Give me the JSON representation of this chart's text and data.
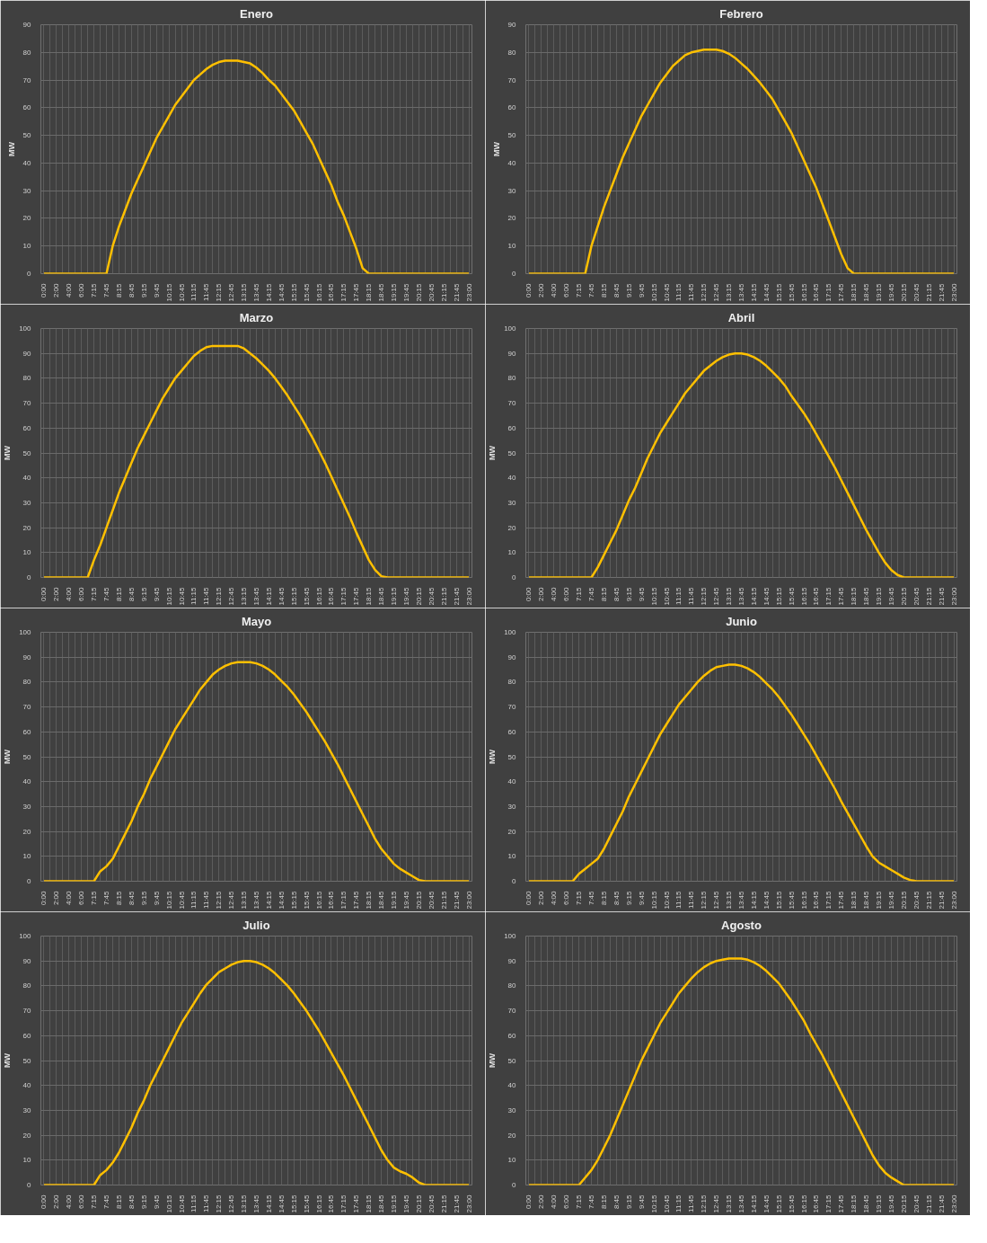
{
  "chart_data": [
    {
      "type": "line",
      "title": "Enero",
      "ylabel": "MW",
      "color": "#ffc000",
      "grid": true,
      "ylim": [
        0,
        90
      ],
      "yticks": [
        0,
        10,
        20,
        30,
        40,
        50,
        60,
        70,
        80,
        90
      ],
      "categories": [
        "0:00",
        null,
        "2:00",
        null,
        "4:00",
        null,
        "6:00",
        null,
        "7:15",
        null,
        "7:45",
        null,
        "8:15",
        null,
        "8:45",
        null,
        "9:15",
        null,
        "9:45",
        null,
        "10:15",
        null,
        "10:45",
        null,
        "11:15",
        null,
        "11:45",
        null,
        "12:15",
        null,
        "12:45",
        null,
        "13:15",
        null,
        "13:45",
        null,
        "14:15",
        null,
        "14:45",
        null,
        "15:15",
        null,
        "15:45",
        null,
        "16:15",
        null,
        "16:45",
        null,
        "17:15",
        null,
        "17:45",
        null,
        "18:15",
        null,
        "18:45",
        null,
        "19:15",
        null,
        "19:45",
        null,
        "20:15",
        null,
        "20:45",
        null,
        "21:15",
        null,
        "21:45",
        null,
        "23:00"
      ],
      "values": [
        0,
        0,
        0,
        0,
        0,
        0,
        0,
        0,
        0,
        0,
        0,
        10,
        17,
        23,
        29,
        34,
        39,
        44,
        49,
        53,
        57,
        61,
        64,
        67,
        70,
        72,
        74,
        75.5,
        76.5,
        77,
        77,
        77,
        76.5,
        76,
        74.5,
        72.5,
        70,
        68,
        65,
        62,
        59,
        55,
        51,
        47,
        42,
        37,
        32,
        26,
        21,
        15,
        9,
        2,
        0,
        0,
        0,
        0,
        0,
        0,
        0,
        0,
        0,
        0,
        0,
        0,
        0,
        0,
        0,
        0,
        0
      ]
    },
    {
      "type": "line",
      "title": "Febrero",
      "ylabel": "MW",
      "color": "#ffc000",
      "grid": true,
      "ylim": [
        0,
        90
      ],
      "yticks": [
        0,
        10,
        20,
        30,
        40,
        50,
        60,
        70,
        80,
        90
      ],
      "categories": [
        "0:00",
        null,
        "2:00",
        null,
        "4:00",
        null,
        "6:00",
        null,
        "7:15",
        null,
        "7:45",
        null,
        "8:15",
        null,
        "8:45",
        null,
        "9:15",
        null,
        "9:45",
        null,
        "10:15",
        null,
        "10:45",
        null,
        "11:15",
        null,
        "11:45",
        null,
        "12:15",
        null,
        "12:45",
        null,
        "13:15",
        null,
        "13:45",
        null,
        "14:15",
        null,
        "14:45",
        null,
        "15:15",
        null,
        "15:45",
        null,
        "16:15",
        null,
        "16:45",
        null,
        "17:15",
        null,
        "17:45",
        null,
        "18:15",
        null,
        "18:45",
        null,
        "19:15",
        null,
        "19:45",
        null,
        "20:15",
        null,
        "20:45",
        null,
        "21:15",
        null,
        "21:45",
        null,
        "23:00"
      ],
      "values": [
        0,
        0,
        0,
        0,
        0,
        0,
        0,
        0,
        0,
        0,
        10,
        17,
        24,
        30,
        36,
        42,
        47,
        52,
        57,
        61,
        65,
        69,
        72,
        75,
        77,
        79,
        80,
        80.5,
        81,
        81,
        81,
        80.5,
        79.5,
        78,
        76,
        74,
        71.5,
        69,
        66,
        63,
        59,
        55,
        51,
        46,
        41,
        36,
        31,
        25,
        19,
        13,
        7,
        2,
        0,
        0,
        0,
        0,
        0,
        0,
        0,
        0,
        0,
        0,
        0,
        0,
        0,
        0,
        0,
        0,
        0
      ]
    },
    {
      "type": "line",
      "title": "Marzo",
      "ylabel": "MW",
      "color": "#ffc000",
      "grid": true,
      "ylim": [
        0,
        100
      ],
      "yticks": [
        0,
        10,
        20,
        30,
        40,
        50,
        60,
        70,
        80,
        90,
        100
      ],
      "categories": [
        "0:00",
        null,
        "2:00",
        null,
        "4:00",
        null,
        "6:00",
        null,
        "7:15",
        null,
        "7:45",
        null,
        "8:15",
        null,
        "8:45",
        null,
        "9:15",
        null,
        "9:45",
        null,
        "10:15",
        null,
        "10:45",
        null,
        "11:15",
        null,
        "11:45",
        null,
        "12:15",
        null,
        "12:45",
        null,
        "13:15",
        null,
        "13:45",
        null,
        "14:15",
        null,
        "14:45",
        null,
        "15:15",
        null,
        "15:45",
        null,
        "16:15",
        null,
        "16:45",
        null,
        "17:15",
        null,
        "17:45",
        null,
        "18:15",
        null,
        "18:45",
        null,
        "19:15",
        null,
        "19:45",
        null,
        "20:15",
        null,
        "20:45",
        null,
        "21:15",
        null,
        "21:45",
        null,
        "23:00"
      ],
      "values": [
        0,
        0,
        0,
        0,
        0,
        0,
        0,
        0,
        7,
        13,
        20,
        27,
        34,
        40,
        46,
        52,
        57,
        62,
        67,
        72,
        76,
        80,
        83,
        86,
        89,
        91,
        92.5,
        93,
        93,
        93,
        93,
        93,
        92,
        90,
        88,
        85.5,
        83,
        80,
        76.5,
        73,
        69,
        65,
        60.5,
        56,
        51,
        46,
        40.5,
        35,
        29.5,
        24,
        18,
        12.5,
        7,
        3,
        0.5,
        0,
        0,
        0,
        0,
        0,
        0,
        0,
        0,
        0,
        0,
        0,
        0,
        0,
        0
      ]
    },
    {
      "type": "line",
      "title": "Abril",
      "ylabel": "MW",
      "color": "#ffc000",
      "grid": true,
      "ylim": [
        0,
        100
      ],
      "yticks": [
        0,
        10,
        20,
        30,
        40,
        50,
        60,
        70,
        80,
        90,
        100
      ],
      "categories": [
        "0:00",
        null,
        "2:00",
        null,
        "4:00",
        null,
        "6:00",
        null,
        "7:15",
        null,
        "7:45",
        null,
        "8:15",
        null,
        "8:45",
        null,
        "9:15",
        null,
        "9:45",
        null,
        "10:15",
        null,
        "10:45",
        null,
        "11:15",
        null,
        "11:45",
        null,
        "12:15",
        null,
        "12:45",
        null,
        "13:15",
        null,
        "13:45",
        null,
        "14:15",
        null,
        "14:45",
        null,
        "15:15",
        null,
        "15:45",
        null,
        "16:15",
        null,
        "16:45",
        null,
        "17:15",
        null,
        "17:45",
        null,
        "18:15",
        null,
        "18:45",
        null,
        "19:15",
        null,
        "19:45",
        null,
        "20:15",
        null,
        "20:45",
        null,
        "21:15",
        null,
        "21:45",
        null,
        "23:00"
      ],
      "values": [
        0,
        0,
        0,
        0,
        0,
        0,
        0,
        0,
        0,
        0,
        0,
        4,
        9,
        14,
        19,
        25,
        31,
        36,
        42,
        48,
        53,
        58,
        62,
        66,
        70,
        74,
        77,
        80,
        83,
        85,
        87,
        88.5,
        89.5,
        90,
        90,
        89.5,
        88.5,
        87,
        85,
        82.5,
        80,
        77,
        73,
        69.5,
        66,
        62,
        57.5,
        53,
        48.5,
        44,
        39,
        34,
        29,
        24,
        19,
        14.5,
        10,
        6,
        3,
        1,
        0,
        0,
        0,
        0,
        0,
        0,
        0,
        0,
        0
      ]
    },
    {
      "type": "line",
      "title": "Mayo",
      "ylabel": "MW",
      "color": "#ffc000",
      "grid": true,
      "ylim": [
        0,
        100
      ],
      "yticks": [
        0,
        10,
        20,
        30,
        40,
        50,
        60,
        70,
        80,
        90,
        100
      ],
      "categories": [
        "0:00",
        null,
        "2:00",
        null,
        "4:00",
        null,
        "6:00",
        null,
        "7:15",
        null,
        "7:45",
        null,
        "8:15",
        null,
        "8:45",
        null,
        "9:15",
        null,
        "9:45",
        null,
        "10:15",
        null,
        "10:45",
        null,
        "11:15",
        null,
        "11:45",
        null,
        "12:15",
        null,
        "12:45",
        null,
        "13:15",
        null,
        "13:45",
        null,
        "14:15",
        null,
        "14:45",
        null,
        "15:15",
        null,
        "15:45",
        null,
        "16:15",
        null,
        "16:45",
        null,
        "17:15",
        null,
        "17:45",
        null,
        "18:15",
        null,
        "18:45",
        null,
        "19:15",
        null,
        "19:45",
        null,
        "20:15",
        null,
        "20:45",
        null,
        "21:15",
        null,
        "21:45",
        null,
        "23:00"
      ],
      "values": [
        0,
        0,
        0,
        0,
        0,
        0,
        0,
        0,
        0,
        4,
        6,
        9,
        14,
        19,
        24,
        30,
        35,
        41,
        46,
        51,
        56,
        61,
        65,
        69,
        73,
        77,
        80,
        83,
        85,
        86.5,
        87.5,
        88,
        88,
        88,
        87.5,
        86.5,
        85,
        83,
        80.5,
        78,
        75,
        71.5,
        68,
        64,
        60,
        56,
        51.5,
        47,
        42,
        37,
        32,
        27,
        22,
        17,
        13,
        10,
        7,
        5,
        3.5,
        2,
        0.5,
        0,
        0,
        0,
        0,
        0,
        0,
        0,
        0
      ]
    },
    {
      "type": "line",
      "title": "Junio",
      "ylabel": "MW",
      "color": "#ffc000",
      "grid": true,
      "ylim": [
        0,
        100
      ],
      "yticks": [
        0,
        10,
        20,
        30,
        40,
        50,
        60,
        70,
        80,
        90,
        100
      ],
      "categories": [
        "0:00",
        null,
        "2:00",
        null,
        "4:00",
        null,
        "6:00",
        null,
        "7:15",
        null,
        "7:45",
        null,
        "8:15",
        null,
        "8:45",
        null,
        "9:15",
        null,
        "9:45",
        null,
        "10:15",
        null,
        "10:45",
        null,
        "11:15",
        null,
        "11:45",
        null,
        "12:15",
        null,
        "12:45",
        null,
        "13:15",
        null,
        "13:45",
        null,
        "14:15",
        null,
        "14:45",
        null,
        "15:15",
        null,
        "15:45",
        null,
        "16:15",
        null,
        "16:45",
        null,
        "17:15",
        null,
        "17:45",
        null,
        "18:15",
        null,
        "18:45",
        null,
        "19:15",
        null,
        "19:45",
        null,
        "20:15",
        null,
        "20:45",
        null,
        "21:15",
        null,
        "21:45",
        null,
        "23:00"
      ],
      "values": [
        0,
        0,
        0,
        0,
        0,
        0,
        0,
        0,
        3,
        5,
        7,
        9,
        13,
        18,
        23,
        28,
        34,
        39,
        44,
        49,
        54,
        59,
        63,
        67,
        71,
        74,
        77,
        80,
        82.5,
        84.5,
        86,
        86.5,
        87,
        87,
        86.5,
        85.5,
        84,
        82,
        79.5,
        77,
        74,
        70.5,
        67,
        63,
        59,
        55,
        50.5,
        46,
        41.5,
        37,
        32,
        27.5,
        23,
        18.5,
        14,
        10,
        7.5,
        6,
        4.5,
        3,
        1.5,
        0.5,
        0,
        0,
        0,
        0,
        0,
        0,
        0
      ]
    },
    {
      "type": "line",
      "title": "Julio",
      "ylabel": "MW",
      "color": "#ffc000",
      "grid": true,
      "ylim": [
        0,
        100
      ],
      "yticks": [
        0,
        10,
        20,
        30,
        40,
        50,
        60,
        70,
        80,
        90,
        100
      ],
      "categories": [
        "0:00",
        null,
        "2:00",
        null,
        "4:00",
        null,
        "6:00",
        null,
        "7:15",
        null,
        "7:45",
        null,
        "8:15",
        null,
        "8:45",
        null,
        "9:15",
        null,
        "9:45",
        null,
        "10:15",
        null,
        "10:45",
        null,
        "11:15",
        null,
        "11:45",
        null,
        "12:15",
        null,
        "12:45",
        null,
        "13:15",
        null,
        "13:45",
        null,
        "14:15",
        null,
        "14:45",
        null,
        "15:15",
        null,
        "15:45",
        null,
        "16:15",
        null,
        "16:45",
        null,
        "17:15",
        null,
        "17:45",
        null,
        "18:15",
        null,
        "18:45",
        null,
        "19:15",
        null,
        "19:45",
        null,
        "20:15",
        null,
        "20:45",
        null,
        "21:15",
        null,
        "21:45",
        null,
        "23:00"
      ],
      "values": [
        0,
        0,
        0,
        0,
        0,
        0,
        0,
        0,
        0,
        4,
        6,
        9,
        13,
        18,
        23,
        29,
        34,
        40,
        45,
        50,
        55,
        60,
        65,
        69,
        73,
        77,
        80.5,
        83,
        85.5,
        87,
        88.5,
        89.5,
        90,
        90,
        89.5,
        88.5,
        87,
        85,
        82.5,
        80,
        77,
        73.5,
        70,
        66,
        62,
        57.5,
        53,
        48.5,
        44,
        39,
        34,
        29,
        24,
        19,
        14,
        10,
        7,
        5.5,
        4.5,
        3,
        1,
        0,
        0,
        0,
        0,
        0,
        0,
        0,
        0
      ]
    },
    {
      "type": "line",
      "title": "Agosto",
      "ylabel": "MW",
      "color": "#ffc000",
      "grid": true,
      "ylim": [
        0,
        100
      ],
      "yticks": [
        0,
        10,
        20,
        30,
        40,
        50,
        60,
        70,
        80,
        90,
        100
      ],
      "categories": [
        "0:00",
        null,
        "2:00",
        null,
        "4:00",
        null,
        "6:00",
        null,
        "7:15",
        null,
        "7:45",
        null,
        "8:15",
        null,
        "8:45",
        null,
        "9:15",
        null,
        "9:45",
        null,
        "10:15",
        null,
        "10:45",
        null,
        "11:15",
        null,
        "11:45",
        null,
        "12:15",
        null,
        "12:45",
        null,
        "13:15",
        null,
        "13:45",
        null,
        "14:15",
        null,
        "14:45",
        null,
        "15:15",
        null,
        "15:45",
        null,
        "16:15",
        null,
        "16:45",
        null,
        "17:15",
        null,
        "17:45",
        null,
        "18:15",
        null,
        "18:45",
        null,
        "19:15",
        null,
        "19:45",
        null,
        "20:15",
        null,
        "20:45",
        null,
        "21:15",
        null,
        "21:45",
        null,
        "23:00"
      ],
      "values": [
        0,
        0,
        0,
        0,
        0,
        0,
        0,
        0,
        0,
        3,
        6,
        10,
        15,
        20,
        26,
        32,
        38,
        44,
        50,
        55,
        60,
        65,
        69,
        73,
        77,
        80,
        83,
        85.5,
        87.5,
        89,
        90,
        90.5,
        91,
        91,
        91,
        90.5,
        89.5,
        88,
        86,
        83.5,
        81,
        77.5,
        74,
        70,
        66,
        61,
        56.5,
        52,
        47,
        42,
        37,
        32,
        27,
        22,
        17,
        12,
        8,
        5,
        3,
        1.5,
        0,
        0,
        0,
        0,
        0,
        0,
        0,
        0,
        0
      ]
    }
  ]
}
